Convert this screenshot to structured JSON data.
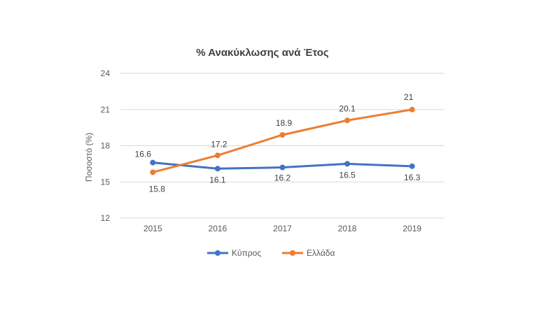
{
  "colors": {
    "kypros": "#4472C4",
    "ellada": "#ED7D31",
    "grid": "#D9D9D9"
  },
  "chart_data": {
    "type": "line",
    "title": "% Ανακύκλωσης ανά Έτος",
    "xlabel": "",
    "ylabel": "Ποσοστό (%)",
    "categories": [
      "2015",
      "2016",
      "2017",
      "2018",
      "2019"
    ],
    "ylim": [
      12,
      24
    ],
    "yticks": [
      "12",
      "15",
      "18",
      "21",
      "24"
    ],
    "grid": true,
    "legend_position": "bottom",
    "series": [
      {
        "name": "Κύπρος",
        "values": [
          16.6,
          16.1,
          16.2,
          16.5,
          16.3
        ],
        "labels": [
          "16.6",
          "16.1",
          "16.2",
          "16.5",
          "16.3"
        ]
      },
      {
        "name": "Ελλάδα",
        "values": [
          15.8,
          17.2,
          18.9,
          20.1,
          21
        ],
        "labels": [
          "15.8",
          "17.2",
          "18.9",
          "20.1",
          "21"
        ]
      }
    ]
  }
}
